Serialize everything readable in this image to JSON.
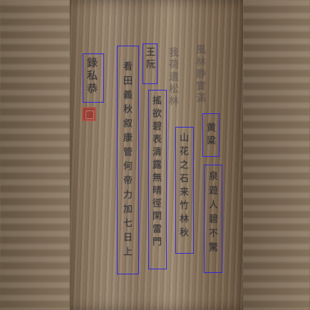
{
  "colors": {
    "box": "#3228d8",
    "ink": "#2b2a33",
    "seal": "#9c2f2a"
  },
  "columns": [
    {
      "id": "c1",
      "text": "錄私恭"
    },
    {
      "id": "c2",
      "text": "看田義秋叙康管何帝力加七日上"
    },
    {
      "id": "c3",
      "text": "王阮"
    },
    {
      "id": "c4",
      "text": "搖欲碧表清露無晴徑閑雷門"
    },
    {
      "id": "c5",
      "text": "山花之石来竹林秋"
    },
    {
      "id": "c6",
      "text": "黄粱"
    },
    {
      "id": "c7",
      "text": "泉遊人碧不驚"
    }
  ],
  "faint_columns": [
    {
      "id": "f1",
      "text": "我荷遣松林"
    },
    {
      "id": "f2",
      "text": "風林静實滿"
    }
  ],
  "seal": {
    "icon": "red-square-seal"
  }
}
